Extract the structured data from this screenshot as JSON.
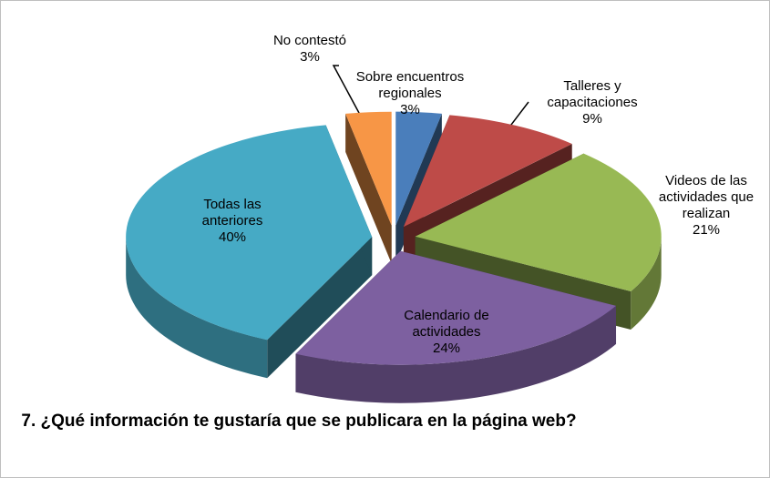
{
  "chart_data": {
    "type": "pie",
    "title": "7. ¿Qué información te gustaría que se publicara en la página web?",
    "categories": [
      "Sobre encuentros regionales",
      "Talleres y capacitaciones",
      "Videos de las actividades que realizan",
      "Calendario de actividades",
      "Todas las anteriores",
      "No contestó"
    ],
    "values": [
      3,
      9,
      21,
      24,
      40,
      3
    ],
    "value_labels": [
      "3%",
      "9%",
      "21%",
      "24%",
      "40%",
      "3%"
    ],
    "colors": [
      "#4a7ebb",
      "#be4b48",
      "#98b954",
      "#7d60a0",
      "#46aac5",
      "#f79646"
    ],
    "exploded": true,
    "three_d": true
  }
}
